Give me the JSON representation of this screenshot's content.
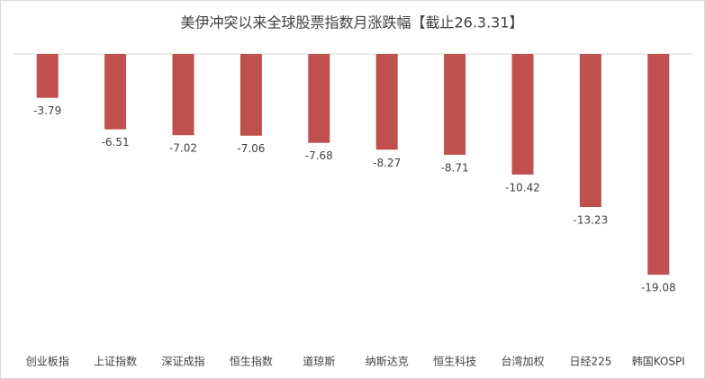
{
  "chart_data": {
    "type": "bar",
    "title": "美伊冲突以来全球股票指数月涨跌幅【截止26.3.31】",
    "categories": [
      "创业板指",
      "上证指数",
      "深证成指",
      "恒生指数",
      "道琼斯",
      "纳斯达克",
      "恒生科技",
      "台湾加权",
      "日经225",
      "韩国KOSPI"
    ],
    "values": [
      -3.79,
      -6.51,
      -7.02,
      -7.06,
      -7.68,
      -8.27,
      -8.71,
      -10.42,
      -13.23,
      -19.08
    ],
    "color": "#c0504d",
    "ylim": [
      -20,
      0
    ]
  }
}
